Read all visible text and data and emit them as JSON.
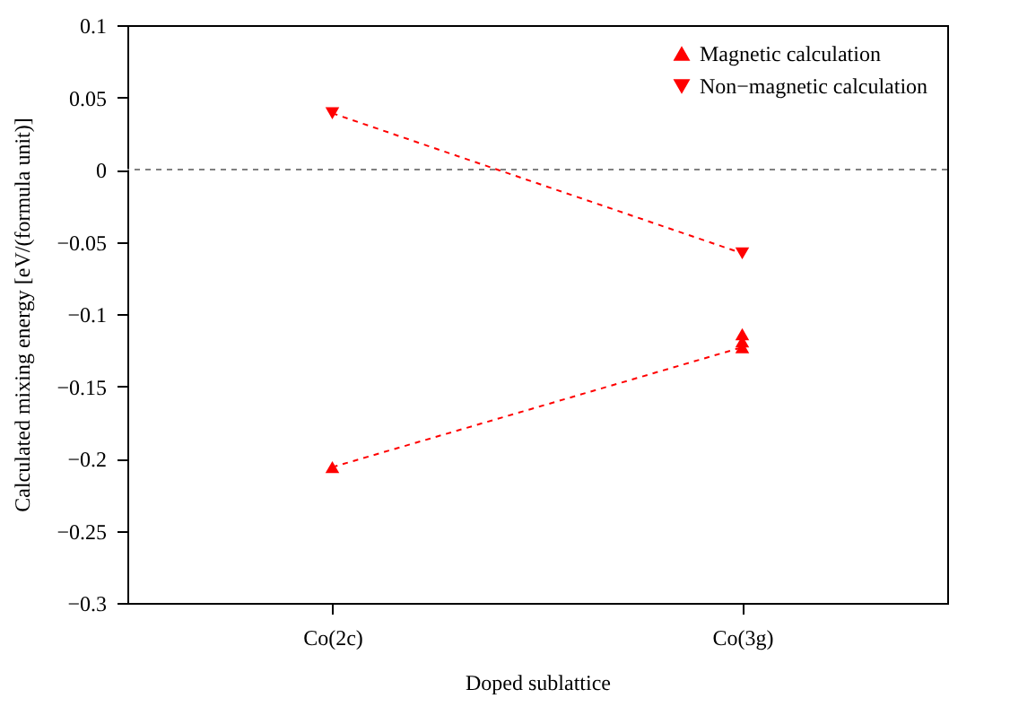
{
  "chart_data": {
    "type": "line",
    "xlabel": "Doped sublattice",
    "ylabel": "Calculated mixing energy [eV/(formula unit)]",
    "categories": [
      "Co(2c)",
      "Co(3g)"
    ],
    "series": [
      {
        "name": "Magnetic calculation",
        "color": "#ff0000",
        "marker": "triangle",
        "x": [
          "Co(2c)",
          "Co(3g)",
          "Co(3g)",
          "Co(3g)"
        ],
        "values": [
          -0.206,
          -0.123,
          -0.119,
          -0.114
        ]
      },
      {
        "name": "Non−magnetic calculation",
        "color": "#ff0000",
        "marker": "triangle-down",
        "x": [
          "Co(2c)",
          "Co(3g)"
        ],
        "values": [
          0.039,
          -0.058
        ]
      }
    ],
    "ylim": [
      -0.3,
      0.1
    ],
    "yticks": [
      -0.3,
      -0.25,
      -0.2,
      -0.15,
      -0.1,
      -0.05,
      0,
      0.05,
      0.1
    ],
    "ref_lines": [
      {
        "axis": "y",
        "value": 0,
        "color": "#808080",
        "line_style": "dashed"
      }
    ],
    "line_style": "dashed",
    "grid": false,
    "legend": "top right"
  }
}
